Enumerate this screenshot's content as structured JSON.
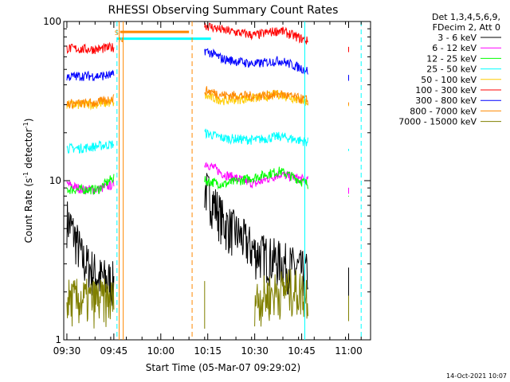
{
  "chart_data": {
    "type": "line",
    "title": "RHESSI Observing Summary Count Rates",
    "xlabel": "Start Time (05-Mar-07 09:29:02)",
    "ylabel": "Count Rate (s⁻¹ detector⁻¹)",
    "ylabel_main": "Count Rate (s",
    "ylabel_sup1": "-1",
    "ylabel_mid": " detector",
    "ylabel_sup2": "-1",
    "ylabel_end": ")",
    "y_scale": "log",
    "ylim": [
      1,
      100
    ],
    "xlim": [
      "09:29",
      "11:07"
    ],
    "x_ticks": [
      "09:30",
      "09:45",
      "10:00",
      "10:15",
      "10:30",
      "10:45",
      "11:00"
    ],
    "y_ticks": [
      "1",
      "10",
      "100"
    ],
    "legend_title": [
      "Det 1,3,4,5,6,9,",
      "FDecim 2, Att 0"
    ],
    "legend_position": "right",
    "timestamp": "14-Oct-2021 10:07",
    "flags": [
      "S",
      "N"
    ],
    "series": [
      {
        "name": "3 - 6 keV",
        "color": "#000000",
        "points": [
          [
            "09:30",
            5.8
          ],
          [
            "09:35",
            3.2
          ],
          [
            "09:40",
            2.5
          ],
          [
            "09:45",
            2.3
          ],
          [
            "10:14",
            9.0
          ],
          [
            "10:20",
            5.5
          ],
          [
            "10:30",
            3.6
          ],
          [
            "10:40",
            3.0
          ],
          [
            "10:47",
            2.6
          ],
          [
            "11:00",
            2.2
          ]
        ]
      },
      {
        "name": "6 - 12 keV",
        "color": "#ff00ff",
        "points": [
          [
            "09:30",
            9.5
          ],
          [
            "09:35",
            8.8
          ],
          [
            "09:40",
            8.8
          ],
          [
            "09:45",
            9.5
          ],
          [
            "10:14",
            13.0
          ],
          [
            "10:20",
            11.0
          ],
          [
            "10:30",
            9.5
          ],
          [
            "10:38",
            11.0
          ],
          [
            "10:47",
            10.0
          ],
          [
            "11:00",
            8.5
          ]
        ]
      },
      {
        "name": "12 - 25 keV",
        "color": "#00ff00",
        "points": [
          [
            "09:30",
            8.8
          ],
          [
            "09:35",
            8.8
          ],
          [
            "09:40",
            8.8
          ],
          [
            "09:45",
            10.5
          ],
          [
            "10:14",
            10.0
          ],
          [
            "10:20",
            9.5
          ],
          [
            "10:30",
            10.5
          ],
          [
            "10:38",
            11.5
          ],
          [
            "10:47",
            9.5
          ],
          [
            "11:00",
            8.5
          ]
        ]
      },
      {
        "name": "25 - 50 keV",
        "color": "#00ffff",
        "points": [
          [
            "09:30",
            16.0
          ],
          [
            "09:35",
            16.0
          ],
          [
            "09:40",
            16.5
          ],
          [
            "09:45",
            17.0
          ],
          [
            "10:14",
            20.0
          ],
          [
            "10:20",
            18.5
          ],
          [
            "10:30",
            18.0
          ],
          [
            "10:38",
            19.0
          ],
          [
            "10:47",
            17.5
          ],
          [
            "11:00",
            16.0
          ]
        ]
      },
      {
        "name": "50 - 100 keV",
        "color": "#ffcc00",
        "points": [
          [
            "09:30",
            30.0
          ],
          [
            "09:35",
            30.0
          ],
          [
            "09:40",
            30.5
          ],
          [
            "09:45",
            31.0
          ],
          [
            "10:14",
            34.0
          ],
          [
            "10:20",
            32.0
          ],
          [
            "10:30",
            33.0
          ],
          [
            "10:38",
            35.0
          ],
          [
            "10:47",
            31.0
          ],
          [
            "11:00",
            29.0
          ]
        ]
      },
      {
        "name": "100 - 300 keV",
        "color": "#ff0000",
        "points": [
          [
            "09:30",
            68.0
          ],
          [
            "09:35",
            67.0
          ],
          [
            "09:40",
            67.0
          ],
          [
            "09:45",
            69.0
          ],
          [
            "10:14",
            95.0
          ],
          [
            "10:20",
            88.0
          ],
          [
            "10:30",
            82.0
          ],
          [
            "10:38",
            88.0
          ],
          [
            "10:47",
            75.0
          ],
          [
            "11:00",
            68.0
          ]
        ]
      },
      {
        "name": "300 - 800 keV",
        "color": "#0000ff",
        "points": [
          [
            "09:30",
            45.0
          ],
          [
            "09:35",
            45.5
          ],
          [
            "09:40",
            45.5
          ],
          [
            "09:45",
            46.0
          ],
          [
            "10:14",
            66.0
          ],
          [
            "10:20",
            58.0
          ],
          [
            "10:30",
            54.0
          ],
          [
            "10:38",
            57.0
          ],
          [
            "10:47",
            49.0
          ],
          [
            "11:00",
            44.0
          ]
        ]
      },
      {
        "name": "800 - 7000 keV",
        "color": "#ff8800",
        "points": [
          [
            "09:30",
            30.5
          ],
          [
            "09:35",
            30.5
          ],
          [
            "09:40",
            31.0
          ],
          [
            "09:45",
            33.0
          ],
          [
            "10:14",
            37.0
          ],
          [
            "10:20",
            34.5
          ],
          [
            "10:30",
            34.0
          ],
          [
            "10:38",
            35.0
          ],
          [
            "10:47",
            32.0
          ],
          [
            "11:00",
            30.0
          ]
        ]
      },
      {
        "name": "7000 - 15000 keV",
        "color": "#808000",
        "points": [
          [
            "09:30",
            1.8
          ],
          [
            "09:40",
            1.8
          ],
          [
            "09:45",
            1.8
          ],
          [
            "10:14",
            1.8
          ],
          [
            "10:30",
            1.8
          ],
          [
            "10:40",
            2.1
          ],
          [
            "10:47",
            2.0
          ],
          [
            "11:00",
            1.8
          ]
        ]
      }
    ],
    "markers": [
      {
        "type": "saa",
        "color": "#00ffff",
        "range": [
          "09:46",
          "10:16"
        ],
        "level": 78
      },
      {
        "type": "night",
        "color": "#ff8800",
        "range": [
          "09:47",
          "10:09"
        ],
        "level": 86
      }
    ],
    "vlines": [
      {
        "time": "09:46",
        "color": "#00ffff",
        "style": "dashed"
      },
      {
        "time": "09:46.7",
        "color": "#ff8800",
        "style": "solid"
      },
      {
        "time": "09:48",
        "color": "#ff8800",
        "style": "solid"
      },
      {
        "time": "10:10",
        "color": "#ff8800",
        "style": "dashed"
      },
      {
        "time": "10:46",
        "color": "#00ffff",
        "style": "solid"
      },
      {
        "time": "11:04",
        "color": "#00ffff",
        "style": "dashed"
      }
    ]
  }
}
